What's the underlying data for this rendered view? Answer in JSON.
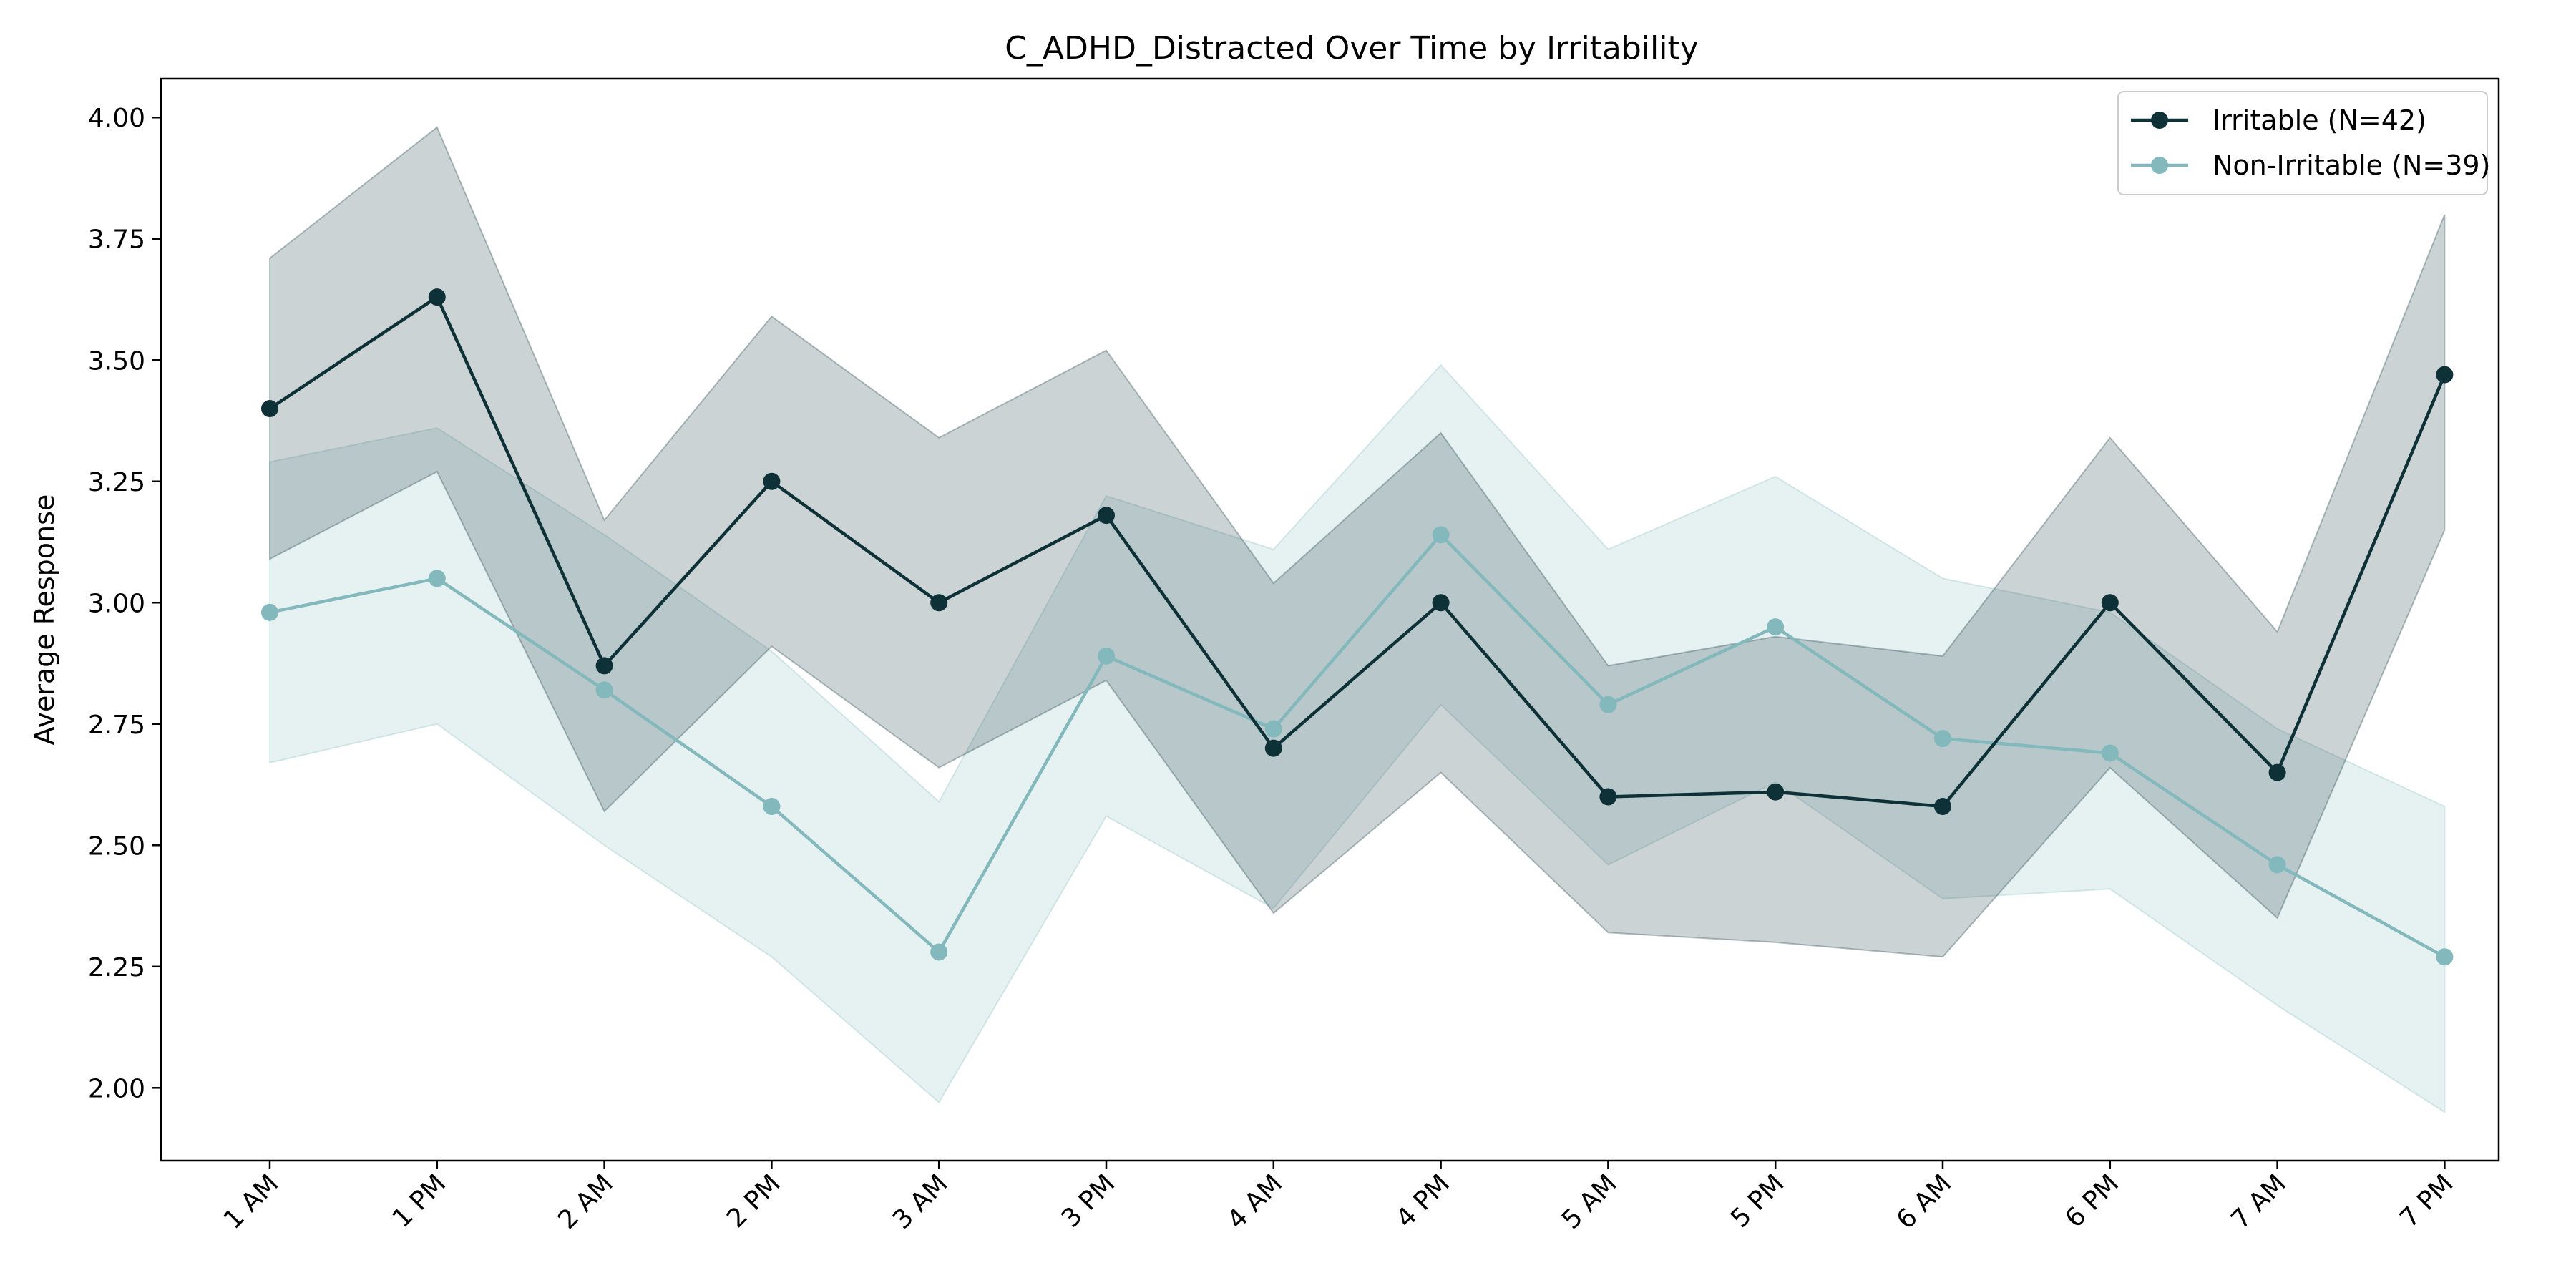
{
  "chart_data": {
    "type": "line",
    "title": "C_ADHD_Distracted Over Time by Irritability",
    "xlabel": "",
    "ylabel": "Average Response",
    "categories": [
      "1 AM",
      "1 PM",
      "2 AM",
      "2 PM",
      "3 AM",
      "3 PM",
      "4 AM",
      "4 PM",
      "5 AM",
      "5 PM",
      "6 AM",
      "6 PM",
      "7 AM",
      "7 PM"
    ],
    "ylim": [
      1.85,
      4.08
    ],
    "yticks": [
      "2.00",
      "2.25",
      "2.50",
      "2.75",
      "3.00",
      "3.25",
      "3.50",
      "3.75",
      "4.00"
    ],
    "grid": false,
    "legend_position": "top-right",
    "series": [
      {
        "name": "Irritable (N=42)",
        "color": "#0d3137",
        "values": [
          3.4,
          3.63,
          2.87,
          3.25,
          3.0,
          3.18,
          2.7,
          3.0,
          2.6,
          2.61,
          2.58,
          3.0,
          2.65,
          3.47
        ],
        "upper": [
          3.71,
          3.98,
          3.17,
          3.59,
          3.34,
          3.52,
          3.04,
          3.35,
          2.87,
          2.93,
          2.89,
          3.34,
          2.94,
          3.8
        ],
        "lower": [
          3.09,
          3.27,
          2.57,
          2.91,
          2.66,
          2.84,
          2.36,
          2.65,
          2.32,
          2.3,
          2.27,
          2.66,
          2.35,
          3.15
        ]
      },
      {
        "name": "Non-Irritable (N=39)",
        "color": "#83b8bc",
        "values": [
          2.98,
          3.05,
          2.82,
          2.58,
          2.28,
          2.89,
          2.74,
          3.14,
          2.79,
          2.95,
          2.72,
          2.69,
          2.46,
          2.27
        ],
        "upper": [
          3.29,
          3.36,
          3.14,
          2.9,
          2.59,
          3.22,
          3.11,
          3.49,
          3.11,
          3.26,
          3.05,
          2.98,
          2.74,
          2.58
        ],
        "lower": [
          2.67,
          2.75,
          2.5,
          2.27,
          1.97,
          2.56,
          2.37,
          2.79,
          2.46,
          2.63,
          2.39,
          2.41,
          2.17,
          1.95
        ]
      }
    ]
  }
}
